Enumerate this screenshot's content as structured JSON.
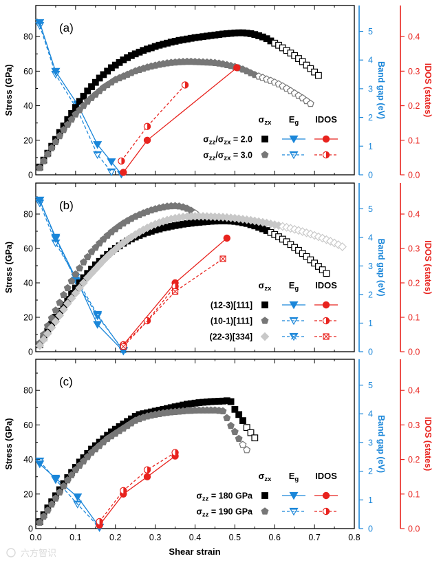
{
  "figure": {
    "x_axis": {
      "label": "Shear strain",
      "ticks": [
        "0.0",
        "0.1",
        "0.2",
        "0.3",
        "0.4",
        "0.5",
        "0.6",
        "0.7",
        "0.8"
      ],
      "xlim": [
        0,
        0.8
      ]
    },
    "left_axis_label": "Stress (GPa)",
    "middle_axis_label": "Band gap (eV)",
    "right_axis_label": "IDOS (states)",
    "stress_ticks": [
      "0",
      "20",
      "40",
      "60",
      "80"
    ],
    "gap_ticks": [
      "0",
      "1",
      "2",
      "3",
      "4",
      "5"
    ],
    "idos_ticks": [
      "0.0",
      "0.1",
      "0.2",
      "0.3",
      "0.4"
    ],
    "colors": {
      "stress_a": "#000000",
      "stress_b": "#777777",
      "stress_c": "#c8c8c8",
      "gap": "#1a86d9",
      "idos": "#e8231e"
    },
    "watermark": "六方智识"
  },
  "chart_data": [
    {
      "type": "scatter",
      "panel_label": "(a)",
      "ylim_stress": [
        0,
        98
      ],
      "ylim_gap": [
        0,
        5.9
      ],
      "ylim_idos": [
        0,
        0.49
      ],
      "legend": {
        "col_stress": "σzx",
        "col_gap": "Eg",
        "col_idos": "IDOS",
        "rows": [
          {
            "label": "σzz/σzx = 2.0"
          },
          {
            "label": "σzz/σzx = 3.0"
          }
        ]
      },
      "stress": [
        {
          "name": "σzz/σzx = 2.0",
          "marker": "square",
          "x_start": 0.01,
          "x_step": 0.01,
          "x_open_from": 0.6,
          "values": [
            4.5,
            8.5,
            12.5,
            16.5,
            20.5,
            24.5,
            28.3,
            32,
            35.5,
            39,
            42.5,
            45.5,
            48.5,
            51,
            53.5,
            56,
            58,
            60,
            62,
            63.5,
            65,
            66.5,
            67.8,
            69,
            70,
            71,
            72,
            72.8,
            73.5,
            74.3,
            75,
            75.6,
            76.2,
            76.8,
            77.3,
            77.8,
            78.2,
            78.6,
            79,
            79.4,
            79.7,
            80,
            80.3,
            80.6,
            80.9,
            81.2,
            81.5,
            81.7,
            81.9,
            82.1,
            82.2,
            82.2,
            82,
            81.7,
            81.2,
            80.5,
            79.8,
            78.8,
            77.5,
            76.2,
            75,
            73.5,
            72,
            70.5,
            69,
            67.3,
            65.5,
            63.5,
            61.5,
            59.5,
            57.5
          ]
        },
        {
          "name": "σzz/σzx = 3.0",
          "marker": "pentagon",
          "x_start": 0.01,
          "x_step": 0.01,
          "x_open_from": 0.56,
          "values": [
            4,
            8,
            12,
            15.5,
            19,
            22.5,
            26,
            29,
            32,
            35,
            37.5,
            40,
            42.5,
            44.5,
            46.5,
            48.5,
            50.5,
            52,
            53.5,
            55,
            56,
            57,
            58,
            59,
            60,
            60.8,
            61.5,
            62.2,
            62.8,
            63.3,
            63.8,
            64.2,
            64.6,
            64.9,
            65.1,
            65.3,
            65.4,
            65.5,
            65.5,
            65.4,
            65.3,
            65.2,
            65.1,
            65,
            64.8,
            64.5,
            64.1,
            63.6,
            63.1,
            62.5,
            61.8,
            61,
            60,
            58.9,
            57.9,
            57,
            56.2,
            55.3,
            54.5,
            53.5,
            52.5,
            51.3,
            50,
            48.6,
            47.2,
            45.8,
            44.4,
            42.8,
            41.2
          ]
        }
      ],
      "gap": [
        {
          "name": "σzz/σzx = 2.0",
          "marker": "triangle-down-filled",
          "x": [
            0.01,
            0.05,
            0.105,
            0.155,
            0.19,
            0.215
          ],
          "values": [
            5.3,
            3.6,
            2.45,
            1.05,
            0.45,
            0.02
          ]
        },
        {
          "name": "σzz/σzx = 3.0",
          "marker": "triangle-down-half",
          "x": [
            0.01,
            0.05,
            0.105,
            0.155,
            0.19
          ],
          "values": [
            5.2,
            3.5,
            2.25,
            0.7,
            0.1
          ]
        }
      ],
      "idos": [
        {
          "name": "σzz/σzx = 2.0",
          "marker": "circle-filled",
          "x": [
            0.22,
            0.28,
            0.505
          ],
          "values": [
            0.007,
            0.1,
            0.31
          ]
        },
        {
          "name": "σzz/σzx = 3.0",
          "marker": "circle-half",
          "x": [
            0.215,
            0.28,
            0.375
          ],
          "values": [
            0.04,
            0.14,
            0.26
          ]
        }
      ]
    },
    {
      "type": "scatter",
      "panel_label": "(b)",
      "ylim_stress": [
        0,
        98
      ],
      "ylim_gap": [
        0,
        5.9
      ],
      "ylim_idos": [
        0,
        0.49
      ],
      "legend": {
        "col_stress": "σzx",
        "col_gap": "Eg",
        "col_idos": "IDOS",
        "rows": [
          {
            "label": "(12-3)[111]"
          },
          {
            "label": "(10-1)[111]"
          },
          {
            "label": "(22-3)[334]"
          }
        ]
      },
      "stress": [
        {
          "name": "(12-3)[111]",
          "marker": "square",
          "x_start": 0.01,
          "x_step": 0.01,
          "x_open_from": 0.59,
          "values": [
            4,
            8,
            12,
            16,
            20,
            23.5,
            27,
            30.5,
            34,
            37,
            40,
            43,
            45.5,
            48,
            50.5,
            52.5,
            54.5,
            56.5,
            58.5,
            60,
            61.5,
            63,
            64.3,
            65.5,
            66.6,
            67.6,
            68.5,
            69.3,
            70,
            70.7,
            71.3,
            71.9,
            72.4,
            72.9,
            73.3,
            73.7,
            74.1,
            74.4,
            74.7,
            75,
            75.2,
            75.4,
            75.6,
            75.8,
            75.9,
            76,
            76,
            76,
            75.9,
            75.7,
            75.4,
            75,
            74.5,
            73.8,
            73.1,
            72.3,
            71.4,
            70.4,
            69.3,
            68.1,
            66.8,
            65.4,
            63.9,
            62.3,
            60.6,
            58.9,
            57.1,
            55.3,
            53.4,
            51.5,
            49.6,
            47.6,
            45.5
          ]
        },
        {
          "name": "(10-1)[111]",
          "marker": "pentagon",
          "x_start": 0.01,
          "x_step": 0.01,
          "x_open_from": 0.4,
          "values": [
            5,
            10,
            15,
            19.5,
            24,
            28.5,
            33,
            37,
            41,
            45,
            48.5,
            52,
            55,
            58,
            60.5,
            63,
            65.3,
            67.5,
            69.5,
            71.3,
            73,
            74.6,
            76,
            77.3,
            78.5,
            79.5,
            80.5,
            81.4,
            82.2,
            82.9,
            83.5,
            84,
            84.4,
            84.6,
            84.7,
            84.5,
            84,
            83.2,
            82,
            80.5
          ]
        },
        {
          "name": "(22-3)[334]",
          "marker": "diamond",
          "x_start": 0.01,
          "x_step": 0.01,
          "x_open_from": 0.62,
          "values": [
            3.5,
            7,
            10.5,
            14,
            17.5,
            21,
            24.5,
            28,
            31,
            34,
            37,
            40,
            43,
            45.5,
            48,
            50.5,
            53,
            55.3,
            57.5,
            59.5,
            61.5,
            63.3,
            65,
            66.6,
            68.1,
            69.5,
            70.8,
            72,
            73.1,
            74.1,
            75,
            75.8,
            76.5,
            77.1,
            77.6,
            78,
            78.3,
            78.5,
            78.6,
            78.7,
            78.7,
            78.7,
            78.6,
            78.5,
            78.4,
            78.3,
            78.2,
            78,
            77.8,
            77.6,
            77.3,
            77,
            76.7,
            76.4,
            76,
            75.6,
            75.2,
            74.8,
            74.3,
            73.8,
            73.3,
            72.8,
            72.3,
            71.7,
            71.1,
            70.5,
            69.8,
            69.1,
            68.4,
            67.6,
            66.8,
            66,
            65.1,
            64.2,
            63.2,
            62.2,
            61
          ]
        }
      ],
      "gap": [
        {
          "name": "(12-3)[111]",
          "marker": "triangle-down-filled",
          "x": [
            0.01,
            0.05,
            0.105,
            0.155,
            0.22
          ],
          "values": [
            5.3,
            4.0,
            2.45,
            0.95,
            0.02
          ]
        },
        {
          "name": "(10-1)[111]",
          "marker": "triangle-down-half",
          "x": [
            0.01,
            0.05,
            0.1,
            0.155,
            0.22
          ],
          "values": [
            5.2,
            3.8,
            2.6,
            1.3,
            0.02
          ]
        },
        {
          "name": "(22-3)[334]",
          "marker": "triangle-down-cross",
          "x": [
            0.01,
            0.05,
            0.1,
            0.155,
            0.22
          ],
          "values": [
            5.3,
            3.95,
            2.5,
            1.25,
            0.05
          ]
        }
      ],
      "idos": [
        {
          "name": "(12-3)[111]",
          "marker": "circle-filled",
          "x": [
            0.22,
            0.35,
            0.48
          ],
          "values": [
            0.02,
            0.2,
            0.33
          ]
        },
        {
          "name": "(10-1)[111]",
          "marker": "circle-half",
          "x": [
            0.22,
            0.28,
            0.35
          ],
          "values": [
            0.02,
            0.09,
            0.19
          ]
        },
        {
          "name": "(22-3)[334]",
          "marker": "square-cross",
          "x": [
            0.22,
            0.35,
            0.47
          ],
          "values": [
            0.015,
            0.175,
            0.27
          ]
        }
      ]
    },
    {
      "type": "scatter",
      "panel_label": "(c)",
      "ylim_stress": [
        0,
        98
      ],
      "ylim_gap": [
        0,
        5.9
      ],
      "ylim_idos": [
        0,
        0.49
      ],
      "legend": {
        "col_stress": "σzx",
        "col_gap": "Eg",
        "col_idos": "IDOS",
        "rows": [
          {
            "label": "σzz = 180 GPa"
          },
          {
            "label": "σzz = 190 GPa"
          }
        ]
      },
      "stress": [
        {
          "name": "σzz = 180 GPa",
          "marker": "square",
          "x_start": 0.01,
          "x_step": 0.01,
          "x_open_from": 0.53,
          "values": [
            4,
            8,
            12,
            15.5,
            19,
            22.5,
            26,
            29.5,
            32.5,
            35.5,
            38.5,
            41,
            43.5,
            46,
            48,
            50,
            52,
            54,
            56,
            57.5,
            59,
            60.5,
            62,
            63.5,
            65,
            66,
            66.5,
            67,
            67.5,
            68,
            68.5,
            69,
            69.5,
            70,
            70.5,
            71,
            71.5,
            72,
            72.3,
            72.6,
            72.9,
            73.1,
            73.3,
            73.5,
            73.6,
            73.7,
            73.8,
            74,
            73.5,
            69,
            66,
            62.5,
            58.5,
            55.5,
            52.5
          ]
        },
        {
          "name": "σzz = 190 GPa",
          "marker": "pentagon",
          "x_start": 0.01,
          "x_step": 0.01,
          "x_open_from": 0.52,
          "values": [
            3.5,
            7,
            10.5,
            14,
            17.5,
            21,
            24.5,
            28,
            31,
            34,
            36.5,
            39,
            41.5,
            44,
            46,
            48,
            50,
            52,
            53.5,
            55,
            56.5,
            58,
            59.5,
            61,
            62.5,
            63.5,
            64.3,
            65,
            65.5,
            66,
            66.4,
            66.8,
            67.1,
            67.4,
            67.6,
            67.8,
            68,
            68.2,
            68.3,
            68.4,
            68.5,
            68.5,
            68.5,
            68.5,
            68.5,
            68.3,
            68,
            64,
            59.5,
            56,
            52,
            48.5,
            45.5
          ]
        }
      ],
      "gap": [
        {
          "name": "σzz = 180 GPa",
          "marker": "triangle-down-filled",
          "x": [
            0.01,
            0.05,
            0.105,
            0.16
          ],
          "values": [
            2.25,
            1.75,
            1.1,
            0.05
          ]
        },
        {
          "name": "σzz = 190 GPa",
          "marker": "triangle-down-half",
          "x": [
            0.01,
            0.05,
            0.105,
            0.16
          ],
          "values": [
            2.35,
            1.7,
            0.85,
            0.03
          ]
        }
      ],
      "idos": [
        {
          "name": "σzz = 180 GPa",
          "marker": "circle-filled",
          "x": [
            0.16,
            0.22,
            0.28,
            0.35
          ],
          "values": [
            0.01,
            0.1,
            0.15,
            0.21
          ]
        },
        {
          "name": "σzz = 190 GPa",
          "marker": "circle-half",
          "x": [
            0.16,
            0.22,
            0.28,
            0.35
          ],
          "values": [
            0.02,
            0.11,
            0.17,
            0.22
          ]
        }
      ]
    }
  ]
}
